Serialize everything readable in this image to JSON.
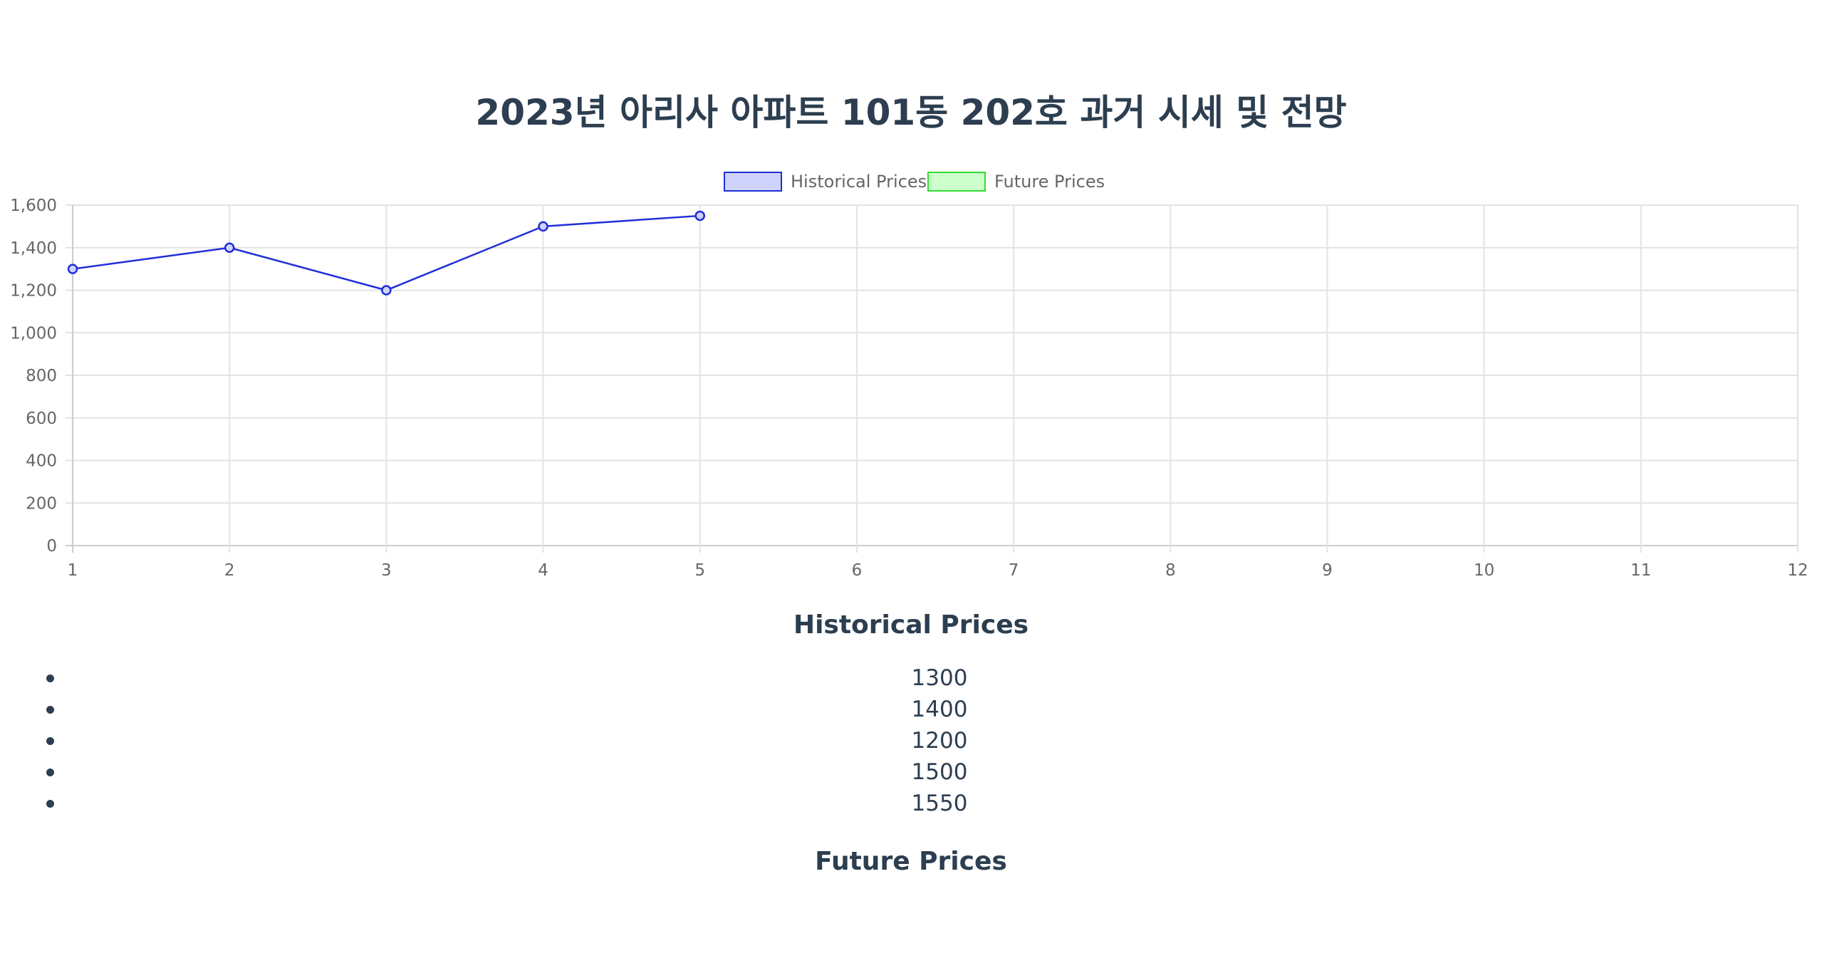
{
  "page": {
    "title": "2023년 아리사 아파트 101동 202호 과거 시세 및 전망"
  },
  "colors": {
    "historical_line": "#1f2fd6",
    "historical_fill": "#cfd3fb",
    "future_line": "#33dd33",
    "future_fill": "#ccffcc",
    "grid": "#e3e3e3",
    "axis_text": "#666666",
    "heading": "#2c3e50"
  },
  "chart_data": {
    "type": "line",
    "x": [
      1,
      2,
      3,
      4,
      5,
      6,
      7,
      8,
      9,
      10,
      11,
      12
    ],
    "x_ticks": [
      "1",
      "2",
      "3",
      "4",
      "5",
      "6",
      "7",
      "8",
      "9",
      "10",
      "11",
      "12"
    ],
    "y_ticks": [
      "0",
      "200",
      "400",
      "600",
      "800",
      "1,000",
      "1,200",
      "1,400",
      "1,600"
    ],
    "ylim": [
      0,
      1600
    ],
    "xlim": [
      1,
      12
    ],
    "grid": true,
    "legend_position": "top-center",
    "series": [
      {
        "name": "Historical Prices",
        "x": [
          1,
          2,
          3,
          4,
          5
        ],
        "values": [
          1300,
          1400,
          1200,
          1500,
          1550
        ]
      },
      {
        "name": "Future Prices",
        "x": [],
        "values": []
      }
    ]
  },
  "sections": {
    "historical_heading": "Historical Prices",
    "historical_items": [
      "1300",
      "1400",
      "1200",
      "1500",
      "1550"
    ],
    "future_heading": "Future Prices"
  }
}
